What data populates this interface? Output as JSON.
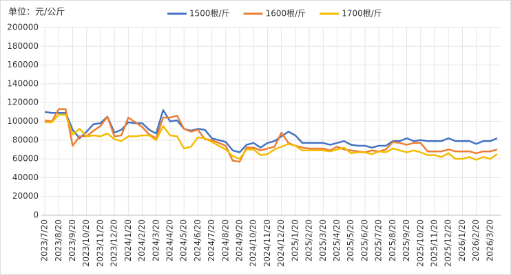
{
  "chart_data": {
    "type": "line",
    "unit_label": "单位：元/公斤",
    "categories": [
      "2023/7/20",
      null,
      "2023/8/20",
      null,
      "2023/9/20",
      null,
      "2023/10/20",
      null,
      "2023/11/20",
      null,
      "2023/12/20",
      null,
      "2024/1/20",
      null,
      "2024/2/20",
      null,
      "2024/3/20",
      null,
      "2024/4/20",
      null,
      "2024/5/20",
      null,
      "2024/6/20",
      null,
      "2024/7/20",
      null,
      "2024/8/20",
      null,
      "2024/9/20",
      null,
      "2024/10/20",
      null,
      "2024/11/20",
      null,
      "2024/12/20",
      null,
      "2025/1/20",
      null,
      "2025/2/20",
      null,
      "2025/3/20",
      null,
      "2025/4/20",
      null,
      "2025/5/20",
      null,
      "2025/6/20",
      null,
      "2025/7/20",
      null,
      "2025/8/20",
      null,
      "2025/9/20",
      null,
      "2025/10/20",
      null,
      "2025/11/20",
      null,
      "2025/12/20",
      null,
      "2026/1/20",
      null,
      "2026/2/20",
      null,
      "2026/3/20",
      null
    ],
    "series": [
      {
        "name": "1500根/斤",
        "color": "#4472c4",
        "values": [
          110000,
          109000,
          109000,
          109000,
          91000,
          82000,
          89000,
          97000,
          98000,
          105000,
          88000,
          91000,
          99000,
          98000,
          98000,
          91000,
          87000,
          112000,
          100000,
          101000,
          92000,
          90000,
          92000,
          91000,
          82000,
          80000,
          78000,
          69000,
          67000,
          75000,
          77000,
          72000,
          77000,
          79000,
          84000,
          89000,
          85000,
          77000,
          77000,
          77000,
          77000,
          75000,
          77000,
          79000,
          75000,
          74000,
          74000,
          72000,
          74000,
          74000,
          79000,
          79000,
          82000,
          79000,
          80000,
          79000,
          79000,
          79000,
          82000,
          79000,
          79000,
          79000,
          76000,
          79000,
          79000,
          82000
        ]
      },
      {
        "name": "1600根/斤",
        "color": "#ed7d31",
        "values": [
          101000,
          100000,
          113000,
          113000,
          74000,
          84000,
          84000,
          90000,
          95000,
          105000,
          84000,
          85000,
          104000,
          99000,
          94000,
          86000,
          82000,
          104000,
          104000,
          106000,
          92000,
          89000,
          91000,
          81000,
          80000,
          77000,
          74000,
          58000,
          57000,
          72000,
          72000,
          69000,
          71000,
          73000,
          88000,
          77000,
          74000,
          72000,
          71000,
          71000,
          71000,
          69000,
          73000,
          70000,
          69000,
          68000,
          67000,
          69000,
          68000,
          70000,
          78000,
          77000,
          75000,
          77000,
          77000,
          68000,
          68000,
          68000,
          70000,
          68000,
          68000,
          68000,
          66000,
          68000,
          68000,
          70000
        ]
      },
      {
        "name": "1700根/斤",
        "color": "#f2bc00",
        "values": [
          99000,
          99000,
          107000,
          107000,
          86000,
          92000,
          84000,
          85000,
          84000,
          87000,
          81000,
          79000,
          84000,
          84000,
          85000,
          85000,
          80000,
          95000,
          85000,
          84000,
          71000,
          73000,
          83000,
          82000,
          78000,
          74000,
          70000,
          63000,
          60000,
          70000,
          70000,
          64000,
          65000,
          70000,
          73000,
          76000,
          74000,
          69000,
          69000,
          69000,
          69000,
          68000,
          70000,
          72000,
          66000,
          67000,
          67000,
          65000,
          68000,
          67000,
          71000,
          69000,
          67000,
          69000,
          67000,
          64000,
          64000,
          62000,
          66000,
          60000,
          60000,
          62000,
          59000,
          62000,
          60000,
          65000
        ]
      }
    ],
    "ylim": [
      0,
      200000
    ],
    "yticks": [
      0,
      20000,
      40000,
      60000,
      80000,
      100000,
      120000,
      140000,
      160000,
      180000,
      200000
    ],
    "grid": true
  }
}
